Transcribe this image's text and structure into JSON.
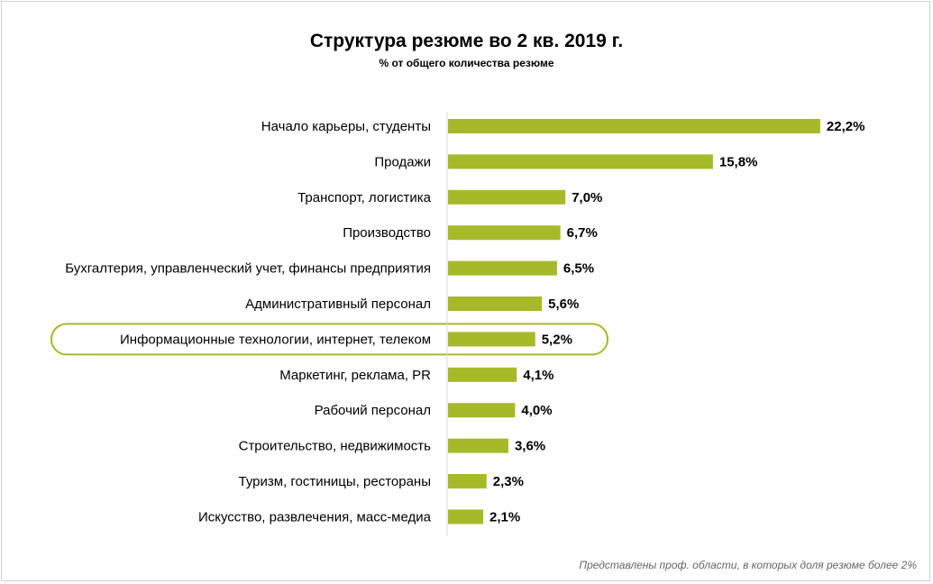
{
  "chart_data": {
    "type": "bar",
    "orientation": "horizontal",
    "title": "Структура резюме во 2 кв. 2019 г.",
    "subtitle": "% от общего количества резюме",
    "categories": [
      "Начало карьеры, студенты",
      "Продажи",
      "Транспорт, логистика",
      "Производство",
      "Бухгалтерия, управленческий учет, финансы предприятия",
      "Административный персонал",
      "Информационные технологии, интернет, телеком",
      "Маркетинг, реклама, PR",
      "Рабочий персонал",
      "Строительство, недвижимость",
      "Туризм, гостиницы, рестораны",
      "Искусство, развлечения, масс-медиа"
    ],
    "values": [
      22.2,
      15.8,
      7.0,
      6.7,
      6.5,
      5.6,
      5.2,
      4.1,
      4.0,
      3.6,
      2.3,
      2.1
    ],
    "value_labels": [
      "22,2%",
      "15,8%",
      "7,0%",
      "6,7%",
      "6,5%",
      "5,6%",
      "5,2%",
      "4,1%",
      "4,0%",
      "3,6%",
      "2,3%",
      "2,1%"
    ],
    "highlighted_category": "Информационные технологии, интернет, телеком",
    "bar_color": "#a6b928",
    "highlight_color": "#a6b928",
    "xlim": [
      0,
      24
    ],
    "grid": false,
    "legend": "none"
  },
  "footnote": "Представлены проф. области, в которых доля резюме более 2%"
}
